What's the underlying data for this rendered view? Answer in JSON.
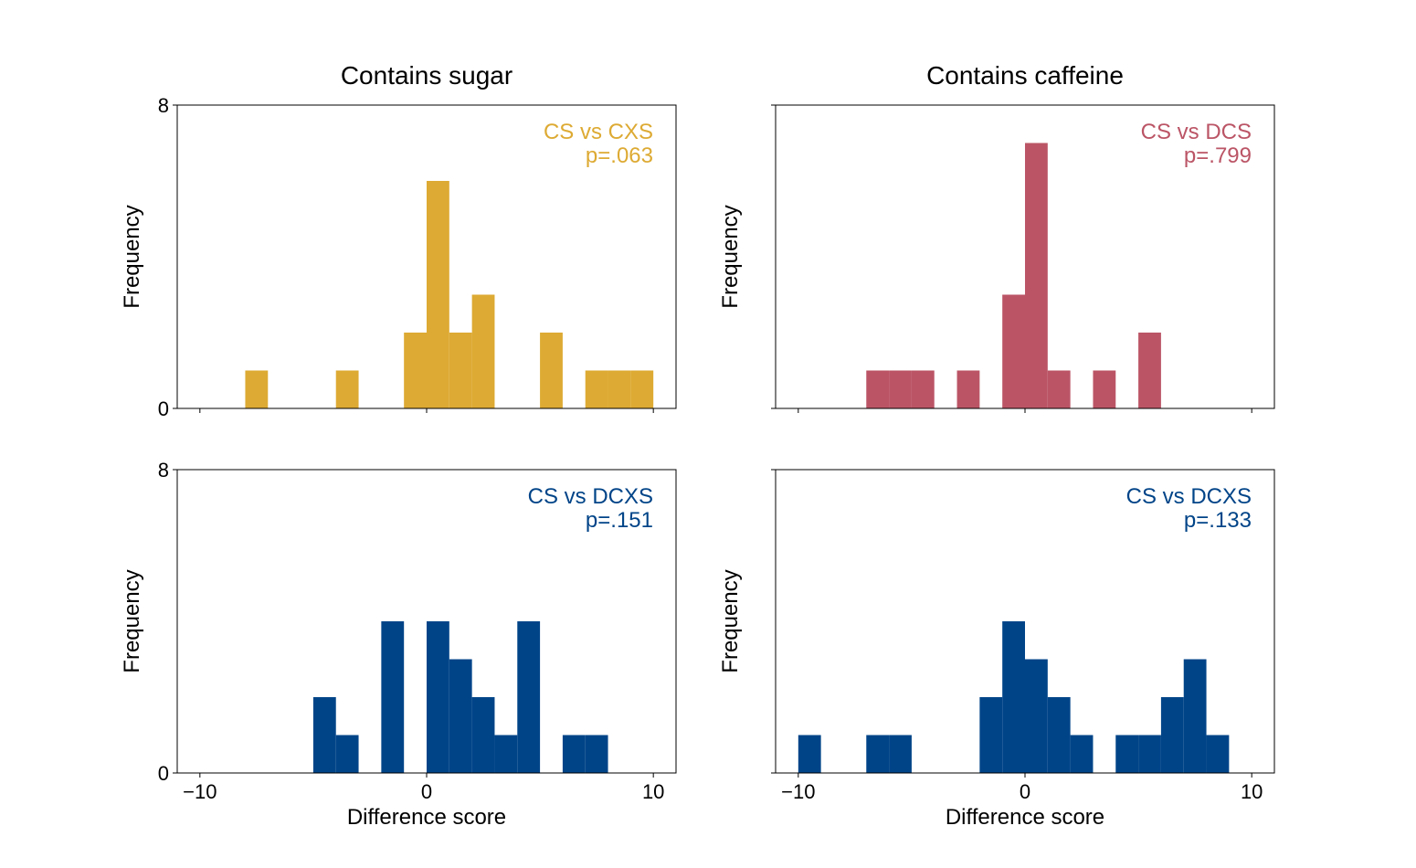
{
  "column_titles": [
    "Contains sugar",
    "Contains caffeine"
  ],
  "chart_data": [
    {
      "type": "bar",
      "title": "",
      "xlabel": "",
      "ylabel": "Frequency",
      "xlim": [
        -11,
        11
      ],
      "ylim": [
        0,
        8
      ],
      "xticks": [
        -10,
        0,
        10
      ],
      "xtick_labels_visible": false,
      "yticks": [
        0,
        8
      ],
      "ytick_labels_visible": true,
      "bin_width": 1,
      "color": "#DDAA33",
      "annotation": [
        "CS vs CXS",
        "p=.063"
      ],
      "bins": [
        {
          "x": -8,
          "count": 1
        },
        {
          "x": -4,
          "count": 1
        },
        {
          "x": -1,
          "count": 2
        },
        {
          "x": 0,
          "count": 6
        },
        {
          "x": 1,
          "count": 2
        },
        {
          "x": 2,
          "count": 3
        },
        {
          "x": 5,
          "count": 2
        },
        {
          "x": 7,
          "count": 1
        },
        {
          "x": 8,
          "count": 1
        },
        {
          "x": 9,
          "count": 1
        }
      ]
    },
    {
      "type": "bar",
      "title": "",
      "xlabel": "",
      "ylabel": "Frequency",
      "xlim": [
        -11,
        11
      ],
      "ylim": [
        0,
        8
      ],
      "xticks": [
        -10,
        0,
        10
      ],
      "xtick_labels_visible": false,
      "yticks": [
        0,
        8
      ],
      "ytick_labels_visible": false,
      "bin_width": 1,
      "color": "#BB5566",
      "annotation": [
        "CS vs DCS",
        "p=.799"
      ],
      "bins": [
        {
          "x": -7,
          "count": 1
        },
        {
          "x": -6,
          "count": 1
        },
        {
          "x": -5,
          "count": 1
        },
        {
          "x": -3,
          "count": 1
        },
        {
          "x": -1,
          "count": 3
        },
        {
          "x": 0,
          "count": 7
        },
        {
          "x": 1,
          "count": 1
        },
        {
          "x": 3,
          "count": 1
        },
        {
          "x": 5,
          "count": 2
        }
      ]
    },
    {
      "type": "bar",
      "title": "",
      "xlabel": "Difference score",
      "ylabel": "Frequency",
      "xlim": [
        -11,
        11
      ],
      "ylim": [
        0,
        8
      ],
      "xticks": [
        -10,
        0,
        10
      ],
      "xtick_labels_visible": true,
      "yticks": [
        0,
        8
      ],
      "ytick_labels_visible": true,
      "bin_width": 1,
      "color": "#004488",
      "annotation": [
        "CS vs DCXS",
        "p=.151"
      ],
      "bins": [
        {
          "x": -5,
          "count": 2
        },
        {
          "x": -4,
          "count": 1
        },
        {
          "x": -2,
          "count": 4
        },
        {
          "x": 0,
          "count": 4
        },
        {
          "x": 1,
          "count": 3
        },
        {
          "x": 2,
          "count": 2
        },
        {
          "x": 3,
          "count": 1
        },
        {
          "x": 4,
          "count": 4
        },
        {
          "x": 6,
          "count": 1
        },
        {
          "x": 7,
          "count": 1
        }
      ]
    },
    {
      "type": "bar",
      "title": "",
      "xlabel": "Difference score",
      "ylabel": "Frequency",
      "xlim": [
        -11,
        11
      ],
      "ylim": [
        0,
        8
      ],
      "xticks": [
        -10,
        0,
        10
      ],
      "xtick_labels_visible": true,
      "yticks": [
        0,
        8
      ],
      "ytick_labels_visible": false,
      "bin_width": 1,
      "color": "#004488",
      "annotation": [
        "CS vs DCXS",
        "p=.133"
      ],
      "bins": [
        {
          "x": -10,
          "count": 1
        },
        {
          "x": -7,
          "count": 1
        },
        {
          "x": -6,
          "count": 1
        },
        {
          "x": -2,
          "count": 2
        },
        {
          "x": -1,
          "count": 4
        },
        {
          "x": 0,
          "count": 3
        },
        {
          "x": 1,
          "count": 2
        },
        {
          "x": 2,
          "count": 1
        },
        {
          "x": 4,
          "count": 1
        },
        {
          "x": 5,
          "count": 1
        },
        {
          "x": 6,
          "count": 2
        },
        {
          "x": 7,
          "count": 3
        },
        {
          "x": 8,
          "count": 1
        }
      ]
    }
  ]
}
